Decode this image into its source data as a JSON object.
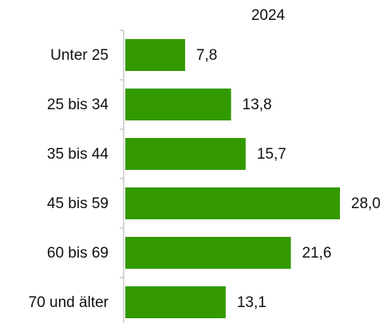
{
  "chart_data": {
    "type": "bar",
    "orientation": "horizontal",
    "categories": [
      "Unter 25",
      "25 bis 34",
      "35 bis 44",
      "45 bis 59",
      "60 bis 69",
      "70 und älter"
    ],
    "series": [
      {
        "name": "2024",
        "color": "#339900",
        "values": [
          7.8,
          13.8,
          15.7,
          28.0,
          21.6,
          13.1
        ],
        "value_labels": [
          "7,8",
          "13,8",
          "15,7",
          "28,0",
          "21,6",
          "13,1"
        ]
      }
    ]
  }
}
